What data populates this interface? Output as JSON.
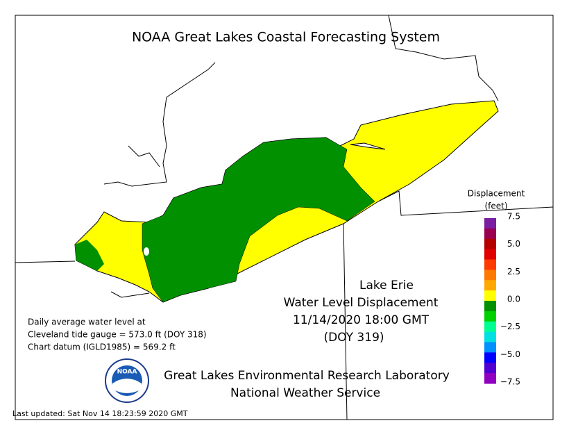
{
  "header": {
    "title": "NOAA Great Lakes Coastal Forecasting System"
  },
  "map_label": {
    "lake": "Lake Erie",
    "product": "Water Level Displacement",
    "time": "11/14/2020 18:00 GMT",
    "doy": "(DOY 319)"
  },
  "notes": [
    "Daily average water level at",
    "Cleveland tide gauge = 573.0 ft (DOY 318)",
    "Chart datum (IGLD1985) = 569.2 ft"
  ],
  "legend": {
    "title": "Displacement",
    "unit": "(feet)",
    "ticks": [
      "7.5",
      "5.0",
      "2.5",
      "0.0",
      "−2.5",
      "−5.0",
      "−7.5"
    ],
    "colors": [
      "#7a1fa2",
      "#9a0050",
      "#b40000",
      "#e00000",
      "#ff3a00",
      "#ff7800",
      "#ffa800",
      "#ffff00",
      "#009000",
      "#00d000",
      "#00ff90",
      "#00e0e0",
      "#0090ff",
      "#0000ff",
      "#5000d0",
      "#9000c0"
    ]
  },
  "logo": {
    "text": "NOAA"
  },
  "footer": {
    "lab": "Great Lakes Environmental Research Laboratory",
    "agency": "National Weather Service",
    "updated": "Last updated: Sat Nov 14 18:23:59 2020 GMT"
  }
}
